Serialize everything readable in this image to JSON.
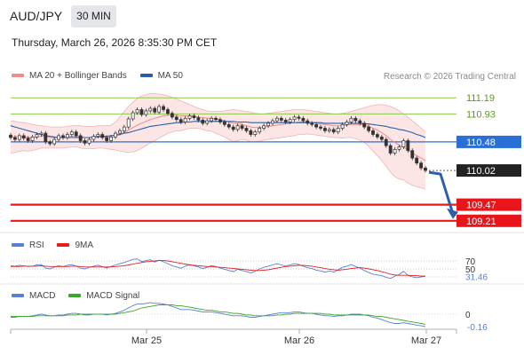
{
  "header": {
    "symbol": "AUD/JPY",
    "timeframe": "30 MIN",
    "datetime": "Thursday, March 26, 2026 8:35:30 PM CET"
  },
  "legend_main": [
    {
      "label": "MA 20 + Bollinger Bands",
      "color": "#f08c8c"
    },
    {
      "label": "MA 50",
      "color": "#2a5fa8"
    }
  ],
  "credit": "Research © 2026 Trading Central",
  "legend_rsi": [
    {
      "label": "RSI",
      "color": "#5b7fd4"
    },
    {
      "label": "9MA",
      "color": "#e02020"
    }
  ],
  "legend_macd": [
    {
      "label": "MACD",
      "color": "#5b7fd4"
    },
    {
      "label": "MACD Signal",
      "color": "#3aa82a"
    }
  ],
  "colors": {
    "candle_up": "#ffffff",
    "candle_down": "#333333",
    "resistance": "#8fc84a",
    "pivot": "#2a6fd6",
    "support": "#e8161b",
    "last": "#222222",
    "arrow": "#2f5fa8"
  },
  "chart_data": [
    {
      "type": "candlestick",
      "name": "price",
      "x_ticks": [
        "Mar 25",
        "Mar 26",
        "Mar 27"
      ],
      "levels": [
        {
          "value": 111.19,
          "label": "111.19",
          "kind": "resistance"
        },
        {
          "value": 110.93,
          "label": "110.93",
          "kind": "resistance"
        },
        {
          "value": 110.48,
          "label": "110.48",
          "kind": "pivot"
        },
        {
          "value": 110.02,
          "label": "110.02",
          "kind": "last"
        },
        {
          "value": 109.47,
          "label": "109.47",
          "kind": "support"
        },
        {
          "value": 109.21,
          "label": "109.21",
          "kind": "support"
        }
      ],
      "ylim": [
        109.05,
        111.45
      ],
      "close": [
        110.55,
        110.52,
        110.58,
        110.54,
        110.5,
        110.56,
        110.6,
        110.62,
        110.48,
        110.45,
        110.52,
        110.58,
        110.55,
        110.6,
        110.64,
        110.58,
        110.5,
        110.46,
        110.52,
        110.57,
        110.6,
        110.55,
        110.5,
        110.56,
        110.62,
        110.66,
        110.72,
        110.85,
        110.95,
        111.0,
        110.92,
        110.98,
        111.02,
        110.96,
        111.05,
        111.0,
        110.94,
        110.88,
        110.84,
        110.8,
        110.86,
        110.9,
        110.87,
        110.83,
        110.78,
        110.82,
        110.86,
        110.84,
        110.8,
        110.76,
        110.72,
        110.68,
        110.74,
        110.7,
        110.66,
        110.6,
        110.64,
        110.7,
        110.74,
        110.78,
        110.82,
        110.86,
        110.83,
        110.8,
        110.84,
        110.88,
        110.86,
        110.82,
        110.78,
        110.76,
        110.72,
        110.7,
        110.66,
        110.68,
        110.64,
        110.7,
        110.76,
        110.8,
        110.86,
        110.82,
        110.78,
        110.72,
        110.66,
        110.6,
        110.56,
        110.52,
        110.42,
        110.3,
        110.36,
        110.4,
        110.5,
        110.34,
        110.22,
        110.14,
        110.06,
        110.02
      ],
      "ma20": [
        110.56,
        110.56,
        110.57,
        110.56,
        110.55,
        110.55,
        110.56,
        110.57,
        110.56,
        110.55,
        110.55,
        110.55,
        110.55,
        110.56,
        110.57,
        110.57,
        110.56,
        110.55,
        110.55,
        110.55,
        110.56,
        110.56,
        110.55,
        110.55,
        110.57,
        110.6,
        110.63,
        110.67,
        110.71,
        110.75,
        110.78,
        110.81,
        110.84,
        110.86,
        110.88,
        110.9,
        110.91,
        110.91,
        110.91,
        110.9,
        110.9,
        110.9,
        110.89,
        110.88,
        110.87,
        110.86,
        110.86,
        110.85,
        110.84,
        110.82,
        110.8,
        110.78,
        110.77,
        110.76,
        110.74,
        110.72,
        110.71,
        110.71,
        110.72,
        110.73,
        110.74,
        110.75,
        110.76,
        110.77,
        110.78,
        110.79,
        110.8,
        110.8,
        110.8,
        110.79,
        110.78,
        110.77,
        110.76,
        110.75,
        110.74,
        110.74,
        110.74,
        110.75,
        110.76,
        110.76,
        110.76,
        110.75,
        110.73,
        110.7,
        110.67,
        110.63,
        110.58,
        110.52,
        110.47,
        110.43,
        110.4,
        110.35,
        110.3,
        110.26,
        110.22,
        110.18
      ],
      "bb_upper": [
        110.82,
        110.81,
        110.8,
        110.79,
        110.78,
        110.76,
        110.75,
        110.74,
        110.73,
        110.72,
        110.72,
        110.72,
        110.72,
        110.73,
        110.74,
        110.74,
        110.74,
        110.73,
        110.73,
        110.73,
        110.74,
        110.74,
        110.74,
        110.75,
        110.8,
        110.88,
        110.97,
        111.05,
        111.12,
        111.18,
        111.22,
        111.24,
        111.26,
        111.26,
        111.25,
        111.24,
        111.22,
        111.2,
        111.17,
        111.14,
        111.11,
        111.08,
        111.05,
        111.02,
        111.0,
        110.98,
        110.97,
        110.97,
        110.97,
        110.98,
        110.99,
        111.0,
        110.99,
        110.98,
        110.97,
        110.96,
        110.94,
        110.93,
        110.93,
        110.94,
        110.95,
        110.96,
        110.97,
        110.98,
        110.99,
        111.0,
        111.0,
        111.0,
        110.99,
        110.98,
        110.97,
        110.96,
        110.95,
        110.94,
        110.93,
        110.93,
        110.94,
        110.95,
        110.97,
        110.99,
        111.01,
        111.03,
        111.05,
        111.07,
        111.08,
        111.08,
        111.07,
        111.05,
        111.02,
        110.98,
        110.93,
        110.88,
        110.82,
        110.76,
        110.7,
        110.64
      ],
      "bb_lower": [
        110.3,
        110.31,
        110.33,
        110.34,
        110.33,
        110.34,
        110.36,
        110.38,
        110.38,
        110.38,
        110.38,
        110.38,
        110.38,
        110.39,
        110.4,
        110.4,
        110.38,
        110.37,
        110.37,
        110.37,
        110.38,
        110.38,
        110.37,
        110.36,
        110.35,
        110.33,
        110.32,
        110.31,
        110.32,
        110.34,
        110.38,
        110.42,
        110.46,
        110.5,
        110.54,
        110.58,
        110.62,
        110.64,
        110.66,
        110.66,
        110.68,
        110.7,
        110.7,
        110.7,
        110.68,
        110.66,
        110.65,
        110.62,
        110.59,
        110.56,
        110.52,
        110.48,
        110.5,
        110.52,
        110.51,
        110.48,
        110.48,
        110.49,
        110.51,
        110.52,
        110.53,
        110.54,
        110.55,
        110.56,
        110.57,
        110.58,
        110.6,
        110.6,
        110.61,
        110.6,
        110.59,
        110.58,
        110.57,
        110.56,
        110.55,
        110.55,
        110.54,
        110.55,
        110.55,
        110.53,
        110.51,
        110.47,
        110.41,
        110.33,
        110.26,
        110.18,
        110.09,
        109.99,
        109.92,
        109.88,
        109.87,
        109.82,
        109.78,
        109.76,
        109.74,
        109.72
      ],
      "ma50": [
        110.74,
        110.72,
        110.7,
        110.68,
        110.66,
        110.64,
        110.62,
        110.6,
        110.58,
        110.57,
        110.56,
        110.55,
        110.55,
        110.55,
        110.55,
        110.55,
        110.55,
        110.55,
        110.55,
        110.56,
        110.56,
        110.57,
        110.57,
        110.58,
        110.59,
        110.6,
        110.62,
        110.63,
        110.65,
        110.67,
        110.69,
        110.71,
        110.73,
        110.74,
        110.75,
        110.76,
        110.77,
        110.78,
        110.79,
        110.79,
        110.8,
        110.8,
        110.81,
        110.81,
        110.81,
        110.81,
        110.81,
        110.81,
        110.81,
        110.81,
        110.81,
        110.81,
        110.8,
        110.8,
        110.8,
        110.79,
        110.79,
        110.79,
        110.79,
        110.79,
        110.79,
        110.79,
        110.79,
        110.79,
        110.79,
        110.79,
        110.79,
        110.79,
        110.79,
        110.79,
        110.79,
        110.79,
        110.78,
        110.78,
        110.78,
        110.78,
        110.78,
        110.78,
        110.78,
        110.78,
        110.78,
        110.77,
        110.77,
        110.76,
        110.75,
        110.74,
        110.73,
        110.71,
        110.7,
        110.68,
        110.67,
        110.65,
        110.63,
        110.6,
        110.58,
        110.55
      ]
    },
    {
      "type": "line",
      "name": "RSI",
      "ylim": [
        0,
        100
      ],
      "levels": [
        70,
        50,
        30
      ],
      "level_labels": [
        "70",
        "50",
        "30"
      ],
      "last_label": "31.46",
      "rsi": [
        58,
        57,
        59,
        58,
        56,
        57,
        60,
        61,
        52,
        50,
        55,
        58,
        56,
        59,
        61,
        57,
        52,
        50,
        54,
        57,
        59,
        56,
        52,
        56,
        60,
        63,
        66,
        70,
        74,
        75,
        68,
        71,
        73,
        67,
        72,
        68,
        63,
        58,
        55,
        52,
        57,
        61,
        58,
        55,
        51,
        54,
        58,
        56,
        52,
        49,
        46,
        43,
        49,
        46,
        43,
        40,
        44,
        50,
        54,
        57,
        60,
        63,
        60,
        57,
        60,
        63,
        61,
        57,
        53,
        51,
        47,
        45,
        42,
        45,
        42,
        48,
        54,
        57,
        61,
        56,
        52,
        46,
        41,
        37,
        35,
        33,
        29,
        26,
        32,
        36,
        44,
        34,
        30,
        28,
        30,
        31.46
      ],
      "ma9": [
        56,
        56,
        56,
        57,
        57,
        57,
        57,
        58,
        57,
        56,
        56,
        56,
        56,
        56,
        57,
        57,
        56,
        55,
        55,
        55,
        55,
        55,
        55,
        55,
        56,
        57,
        58,
        60,
        62,
        64,
        66,
        68,
        69,
        70,
        71,
        71,
        70,
        68,
        66,
        64,
        62,
        60,
        59,
        58,
        57,
        56,
        56,
        55,
        54,
        53,
        52,
        51,
        50,
        49,
        48,
        47,
        46,
        46,
        47,
        48,
        50,
        52,
        54,
        56,
        57,
        58,
        59,
        59,
        58,
        57,
        55,
        53,
        51,
        49,
        48,
        47,
        48,
        49,
        51,
        52,
        53,
        52,
        50,
        48,
        46,
        43,
        40,
        37,
        35,
        34,
        34,
        34,
        33,
        33,
        32,
        32
      ]
    },
    {
      "type": "line",
      "name": "MACD",
      "ylim": [
        -0.3,
        0.2
      ],
      "levels": [
        0
      ],
      "level_labels": [
        "0"
      ],
      "last_label": "-0.16",
      "macd": [
        -0.04,
        -0.04,
        -0.03,
        -0.03,
        -0.03,
        -0.02,
        -0.01,
        0.0,
        -0.01,
        -0.02,
        -0.02,
        -0.01,
        -0.01,
        0.0,
        0.01,
        0.01,
        0.0,
        -0.01,
        -0.01,
        0.0,
        0.0,
        0.0,
        -0.01,
        0.0,
        0.01,
        0.03,
        0.05,
        0.08,
        0.11,
        0.13,
        0.13,
        0.14,
        0.15,
        0.14,
        0.14,
        0.13,
        0.12,
        0.1,
        0.08,
        0.06,
        0.06,
        0.06,
        0.05,
        0.04,
        0.03,
        0.03,
        0.03,
        0.02,
        0.01,
        0.0,
        -0.01,
        -0.02,
        -0.02,
        -0.02,
        -0.03,
        -0.04,
        -0.04,
        -0.03,
        -0.02,
        -0.01,
        0.0,
        0.01,
        0.02,
        0.02,
        0.02,
        0.03,
        0.03,
        0.02,
        0.01,
        0.01,
        0.0,
        -0.01,
        -0.02,
        -0.02,
        -0.03,
        -0.02,
        -0.02,
        -0.01,
        0.0,
        0.0,
        0.0,
        -0.01,
        -0.02,
        -0.04,
        -0.05,
        -0.07,
        -0.09,
        -0.11,
        -0.12,
        -0.12,
        -0.11,
        -0.12,
        -0.13,
        -0.14,
        -0.15,
        -0.16
      ],
      "signal": [
        -0.03,
        -0.03,
        -0.03,
        -0.03,
        -0.03,
        -0.03,
        -0.02,
        -0.02,
        -0.02,
        -0.02,
        -0.02,
        -0.02,
        -0.02,
        -0.01,
        -0.01,
        -0.01,
        0.0,
        0.0,
        0.0,
        0.0,
        0.0,
        0.0,
        0.0,
        0.0,
        0.0,
        0.01,
        0.02,
        0.03,
        0.04,
        0.06,
        0.08,
        0.09,
        0.1,
        0.11,
        0.12,
        0.12,
        0.12,
        0.12,
        0.11,
        0.11,
        0.1,
        0.09,
        0.08,
        0.07,
        0.06,
        0.05,
        0.05,
        0.04,
        0.03,
        0.03,
        0.02,
        0.01,
        0.01,
        0.0,
        -0.01,
        -0.01,
        -0.02,
        -0.02,
        -0.02,
        -0.02,
        -0.02,
        -0.01,
        -0.01,
        0.0,
        0.0,
        0.01,
        0.01,
        0.01,
        0.01,
        0.01,
        0.01,
        0.01,
        0.0,
        0.0,
        -0.01,
        -0.01,
        -0.01,
        -0.01,
        -0.01,
        -0.01,
        -0.01,
        -0.01,
        -0.01,
        -0.02,
        -0.03,
        -0.03,
        -0.04,
        -0.05,
        -0.06,
        -0.07,
        -0.08,
        -0.09,
        -0.1,
        -0.11,
        -0.12,
        -0.13
      ]
    }
  ]
}
